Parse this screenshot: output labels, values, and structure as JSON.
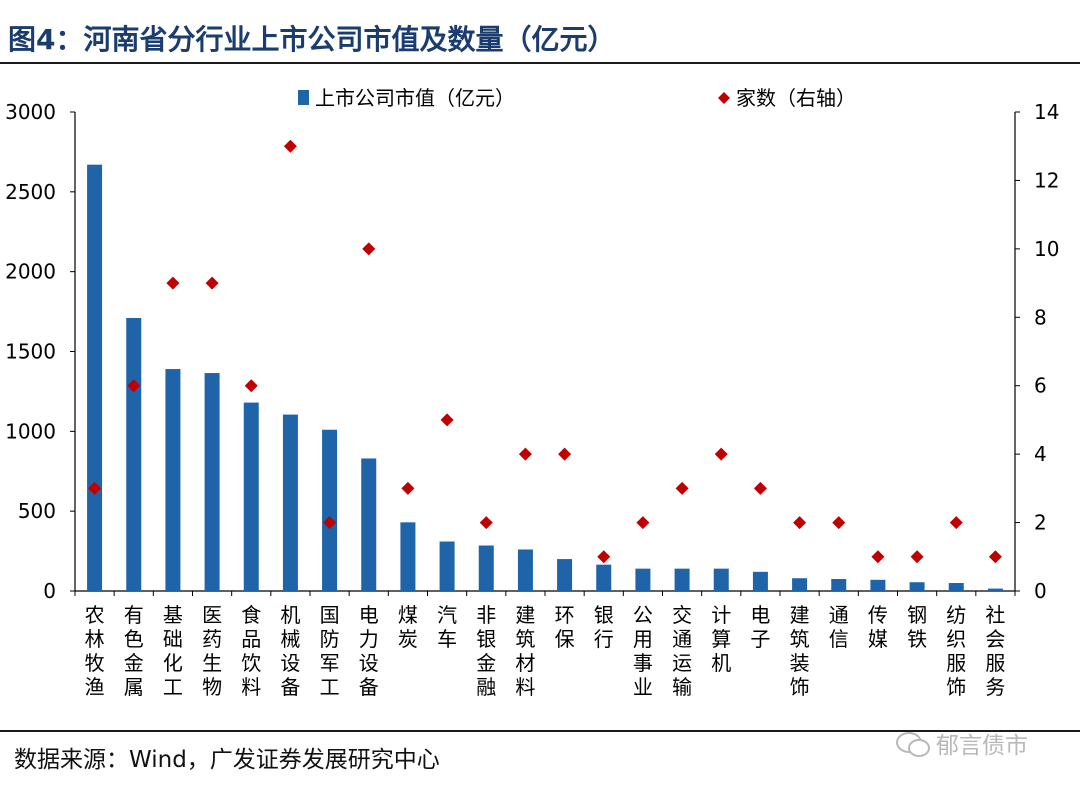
{
  "header": {
    "title": "图4：河南省分行业上市公司市值及数量（亿元）"
  },
  "footer": {
    "source": "数据来源：Wind，广发证券发展研究中心",
    "watermark": "郁言债市",
    "watermark_icon": "wechat-icon"
  },
  "chart_data": {
    "type": "bar",
    "categories": [
      "农林牧渔",
      "有色金属",
      "基础化工",
      "医药生物",
      "食品饮料",
      "机械设备",
      "国防军工",
      "电力设备",
      "煤炭",
      "汽车",
      "非银金融",
      "建筑材料",
      "环保",
      "银行",
      "公用事业",
      "交通运输",
      "计算机",
      "电子",
      "建筑装饰",
      "通信",
      "传媒",
      "钢铁",
      "纺织服饰",
      "社会服务"
    ],
    "series": [
      {
        "name": "上市公司市值（亿元）",
        "type": "bar",
        "axis": "left",
        "color": "#1f63a8",
        "values": [
          2670,
          1710,
          1390,
          1365,
          1180,
          1105,
          1010,
          830,
          430,
          310,
          285,
          260,
          200,
          165,
          140,
          140,
          140,
          120,
          80,
          75,
          70,
          55,
          50,
          15
        ]
      },
      {
        "name": "家数（右轴）",
        "type": "scatter",
        "marker": "diamond",
        "axis": "right",
        "color": "#c00000",
        "values": [
          3,
          6,
          9,
          9,
          6,
          13,
          2,
          10,
          3,
          5,
          2,
          4,
          4,
          1,
          2,
          3,
          4,
          3,
          2,
          2,
          1,
          1,
          2,
          1
        ]
      }
    ],
    "y_left": {
      "min": 0,
      "max": 3000,
      "ticks": [
        0,
        500,
        1000,
        1500,
        2000,
        2500,
        3000
      ]
    },
    "y_right": {
      "min": 0,
      "max": 14,
      "ticks": [
        0,
        2,
        4,
        6,
        8,
        10,
        12,
        14
      ]
    },
    "legend": "top-center",
    "grid": false
  }
}
